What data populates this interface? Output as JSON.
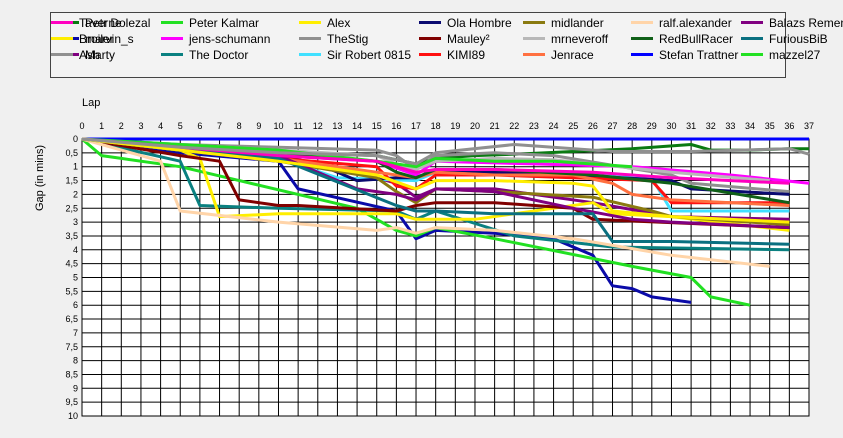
{
  "chart_data": {
    "type": "line",
    "title": "",
    "xlabel": "Lap",
    "ylabel": "Gap (in mins)",
    "xlim": [
      0,
      37
    ],
    "ylim": [
      0,
      10
    ],
    "y_inverted": true,
    "x_ticks": [
      0,
      1,
      2,
      3,
      4,
      5,
      6,
      7,
      8,
      9,
      10,
      11,
      12,
      13,
      14,
      15,
      16,
      17,
      18,
      19,
      20,
      21,
      22,
      23,
      24,
      25,
      26,
      27,
      28,
      29,
      30,
      31,
      32,
      33,
      34,
      35,
      36,
      37
    ],
    "y_ticks": [
      "0",
      "0,5",
      "1",
      "1,5",
      "2",
      "2,5",
      "3",
      "3,5",
      "4",
      "4,5",
      "5",
      "5,5",
      "6",
      "6,5",
      "7",
      "7,5",
      "8",
      "8,5",
      "9",
      "9,5",
      "10"
    ],
    "grid": true,
    "legend_position": "top",
    "series": [
      {
        "name": "Petr Dolezal",
        "color": "#0a7a12",
        "x": [
          0,
          5,
          10,
          15,
          17,
          18,
          20,
          22,
          25,
          28,
          31,
          32,
          34,
          36,
          37
        ],
        "y": [
          0,
          0.4,
          0.45,
          0.6,
          0.9,
          0.7,
          0.6,
          0.55,
          0.45,
          0.35,
          0.2,
          0.4,
          0.4,
          0.35,
          0.35
        ]
      },
      {
        "name": "marvin_s",
        "color": "#0a0aa8",
        "x": [
          0,
          5,
          10,
          11,
          16,
          17,
          18,
          21,
          24,
          26,
          27,
          28,
          29,
          31
        ],
        "y": [
          0,
          0.5,
          0.8,
          1.8,
          2.6,
          3.6,
          3.3,
          3.4,
          3.6,
          4.2,
          5.3,
          5.4,
          5.7,
          5.9
        ]
      },
      {
        "name": "Marty",
        "color": "#800080",
        "x": [
          0,
          5,
          10,
          13,
          16,
          17,
          18,
          21,
          26,
          30,
          36
        ],
        "y": [
          0,
          0.3,
          0.8,
          1,
          1.6,
          2.1,
          1.8,
          1.8,
          2.3,
          2.8,
          2.9
        ]
      },
      {
        "name": "Peter Kalmar",
        "color": "#22e022",
        "x": [
          0,
          1,
          2,
          5,
          8,
          11,
          14,
          16,
          17,
          18,
          21,
          28,
          31,
          32,
          34
        ],
        "y": [
          0,
          0.6,
          0.7,
          1,
          1.5,
          2,
          2.5,
          3.3,
          3.5,
          3.2,
          3.6,
          4.6,
          5,
          5.7,
          6
        ]
      },
      {
        "name": "jens-schumann",
        "color": "#ff00ff",
        "x": [
          0,
          5,
          10,
          15,
          17,
          18,
          23,
          28,
          33,
          37
        ],
        "y": [
          0,
          0.3,
          0.6,
          0.8,
          1.3,
          0.8,
          0.9,
          1,
          1.3,
          1.6
        ]
      },
      {
        "name": "The Doctor",
        "color": "#0a8080",
        "x": [
          0,
          5,
          6,
          10,
          16,
          17,
          18,
          22,
          27,
          36
        ],
        "y": [
          0,
          0.8,
          2.4,
          2.5,
          2.6,
          2.9,
          2.6,
          3.5,
          3.9,
          4
        ]
      },
      {
        "name": "Alex",
        "color": "#ffee00",
        "x": [
          0,
          5,
          6,
          7,
          10,
          16,
          17,
          20,
          26,
          27,
          30,
          36
        ],
        "y": [
          0,
          0.4,
          0.7,
          2.8,
          2.7,
          2.7,
          2.9,
          2.9,
          2.3,
          2.7,
          2.8,
          3.3
        ]
      },
      {
        "name": "TheStig",
        "color": "#909090",
        "x": [
          0,
          5,
          10,
          15,
          16,
          17,
          18,
          21,
          24,
          30,
          31,
          36
        ],
        "y": [
          0,
          0.2,
          0.3,
          0.4,
          0.6,
          1.1,
          0.6,
          0.5,
          0.6,
          1.3,
          1.6,
          1.9
        ]
      },
      {
        "name": "Sir Robert 0815",
        "color": "#40e0ff",
        "x": [
          0,
          5,
          10,
          13,
          17,
          18,
          22,
          26,
          29,
          30,
          36
        ],
        "y": [
          0,
          0.3,
          0.7,
          1.4,
          1.5,
          1.2,
          1.2,
          1.3,
          1.4,
          2.6,
          2.6
        ]
      },
      {
        "name": "Ola Hombre",
        "color": "#0a0a70",
        "x": [
          0,
          5,
          10,
          12,
          14,
          16,
          17,
          18,
          21,
          25,
          30,
          31,
          36
        ],
        "y": [
          0,
          0.3,
          0.6,
          0.9,
          1.5,
          1.4,
          1.4,
          1.1,
          1.2,
          1.3,
          1.5,
          1.8,
          2
        ]
      },
      {
        "name": "Mauley²",
        "color": "#800000",
        "x": [
          0,
          5,
          7,
          8,
          10,
          11,
          16,
          17,
          18,
          21,
          25,
          26,
          36
        ],
        "y": [
          0,
          0.6,
          0.8,
          2.2,
          2.4,
          2.4,
          2.6,
          2.4,
          2.3,
          2.3,
          2.5,
          2.9,
          3.2
        ]
      },
      {
        "name": "KIMI89",
        "color": "#ff1010",
        "x": [
          0,
          5,
          10,
          15,
          16,
          17,
          18,
          21,
          25,
          29,
          30,
          36
        ],
        "y": [
          0,
          0.3,
          0.7,
          1,
          1.7,
          1.8,
          1.3,
          1.3,
          1.4,
          1.5,
          2.3,
          2.3
        ]
      },
      {
        "name": "midlander",
        "color": "#8a7a10",
        "x": [
          0,
          5,
          10,
          15,
          16,
          17,
          18,
          21,
          26,
          29,
          30,
          36
        ],
        "y": [
          0,
          0.4,
          0.8,
          1.4,
          1.9,
          2.3,
          1.8,
          1.9,
          2.1,
          2.6,
          2.8,
          3.1
        ]
      },
      {
        "name": "mrneveroff",
        "color": "#b8b8b8",
        "x": [
          0,
          5,
          10,
          15,
          16,
          17,
          18,
          21,
          24,
          30,
          35
        ],
        "y": [
          0,
          0.2,
          0.4,
          0.6,
          0.9,
          1.1,
          0.8,
          0.7,
          0.75,
          1.2,
          1.5
        ]
      },
      {
        "name": "Jenrace",
        "color": "#ff7040",
        "x": [
          0,
          5,
          10,
          14,
          16,
          17,
          18,
          21,
          25,
          27,
          28,
          30,
          36
        ],
        "y": [
          0,
          0.4,
          0.7,
          1.1,
          1.3,
          1.4,
          1.2,
          1.3,
          1.3,
          1.6,
          2,
          2.2,
          2.4
        ]
      },
      {
        "name": "ralf.alexander",
        "color": "#ffd4a8",
        "x": [
          0,
          3,
          4,
          5,
          10,
          15,
          16,
          17,
          18,
          21,
          25,
          30,
          35
        ],
        "y": [
          0,
          0.6,
          0.8,
          2.6,
          3,
          3.3,
          3.2,
          3.4,
          3.2,
          3.3,
          3.6,
          4.2,
          4.6
        ]
      },
      {
        "name": "RedBullRacer",
        "color": "#106018",
        "x": [
          0,
          5,
          10,
          15,
          16,
          17,
          18,
          21,
          26,
          30,
          36
        ],
        "y": [
          0,
          0.3,
          0.5,
          0.8,
          1.2,
          1.4,
          1.1,
          1.1,
          1.3,
          1.6,
          2.3
        ]
      },
      {
        "name": "Stefan Trattner",
        "color": "#0000ff",
        "x": [
          0,
          37
        ],
        "y": [
          0,
          0
        ]
      },
      {
        "name": "Balazs Remenyi",
        "color": "#800080",
        "x": [
          0,
          5,
          10,
          14,
          16,
          17,
          18,
          21,
          25,
          28,
          30,
          36
        ],
        "y": [
          0,
          0.3,
          0.6,
          1.8,
          2,
          2.2,
          1.8,
          1.9,
          2.5,
          2.9,
          3,
          3.2
        ]
      },
      {
        "name": "FuriousBiB",
        "color": "#0a7080",
        "x": [
          0,
          5,
          10,
          16,
          17,
          18,
          21,
          26,
          27,
          30,
          36
        ],
        "y": [
          0,
          0.4,
          0.7,
          2.4,
          2.6,
          2.6,
          2.7,
          2.7,
          3.7,
          3.7,
          3.8
        ]
      },
      {
        "name": "mazzel27",
        "color": "#22e022",
        "x": [
          0,
          5,
          10,
          15,
          17,
          18,
          21,
          24,
          28
        ],
        "y": [
          0,
          0.2,
          0.4,
          0.8,
          1,
          0.7,
          0.8,
          0.8,
          1
        ]
      },
      {
        "name": "Taverne",
        "color": "#ff00c0",
        "x": [
          0,
          5,
          10,
          15,
          17,
          18,
          21,
          26,
          30,
          36
        ],
        "y": [
          0,
          0.3,
          0.6,
          0.8,
          1.2,
          1.1,
          1.1,
          1.2,
          1.4,
          1.6
        ]
      },
      {
        "name": "Broiler",
        "color": "#ffee00",
        "x": [
          0,
          5,
          10,
          15,
          17,
          18,
          21,
          25,
          26,
          27,
          30,
          36
        ],
        "y": [
          0,
          0.4,
          0.8,
          1.3,
          1.8,
          1.5,
          1.5,
          1.6,
          1.7,
          2.6,
          2.8,
          3
        ]
      },
      {
        "name": "Ash",
        "color": "#909090",
        "x": [
          0,
          5,
          10,
          15,
          17,
          18,
          22,
          27,
          31,
          36,
          37
        ],
        "y": [
          0,
          0.3,
          0.5,
          0.6,
          0.9,
          0.5,
          0.2,
          0.45,
          0.45,
          0.35,
          0.55
        ]
      }
    ]
  }
}
